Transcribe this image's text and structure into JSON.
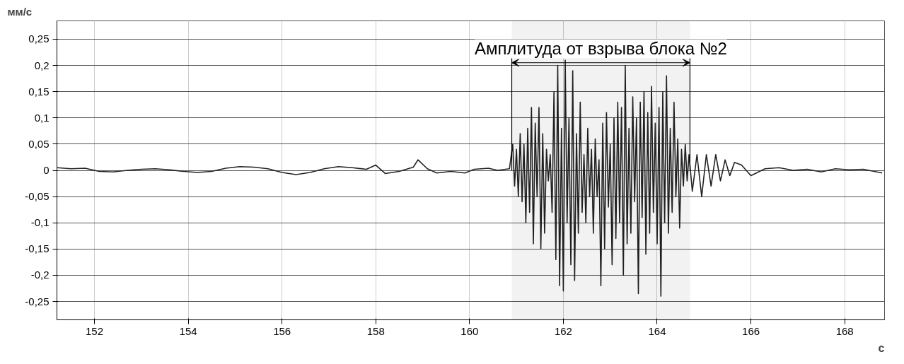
{
  "chart_data": {
    "type": "line",
    "ylabel": "мм/с",
    "xlabel": "с",
    "xlim": [
      151.2,
      168.85
    ],
    "xticks": [
      152,
      154,
      156,
      158,
      160,
      162,
      164,
      166,
      168
    ],
    "ylim": [
      -0.285,
      0.285
    ],
    "yticks": [
      {
        "value": -0.25,
        "label": "-0,25"
      },
      {
        "value": -0.2,
        "label": "-0,2"
      },
      {
        "value": -0.15,
        "label": "-0,15"
      },
      {
        "value": -0.1,
        "label": "-0,1"
      },
      {
        "value": -0.05,
        "label": "-0,05"
      },
      {
        "value": 0,
        "label": "0"
      },
      {
        "value": 0.05,
        "label": "0,05"
      },
      {
        "value": 0.1,
        "label": "0,1"
      },
      {
        "value": 0.15,
        "label": "0,15"
      },
      {
        "value": 0.2,
        "label": "0,2"
      },
      {
        "value": 0.25,
        "label": "0,25"
      }
    ],
    "grid": true,
    "line_style": "solid",
    "bands": [
      {
        "axis": "x",
        "from": 160.9,
        "to": 164.7,
        "label": "Амплитуда от взрыва блока №2",
        "color": "#000000"
      }
    ],
    "series": [
      {
        "color": "#222222",
        "x": [
          151.2,
          151.5,
          151.8,
          152.1,
          152.4,
          152.7,
          153.0,
          153.3,
          153.6,
          153.9,
          154.2,
          154.5,
          154.8,
          155.1,
          155.4,
          155.7,
          156.0,
          156.3,
          156.6,
          156.9,
          157.2,
          157.5,
          157.8,
          158.0,
          158.2,
          158.5,
          158.8,
          158.9,
          159.1,
          159.3,
          159.6,
          159.9,
          160.1,
          160.4,
          160.6,
          160.85,
          160.92,
          160.96,
          161.0,
          161.04,
          161.08,
          161.12,
          161.16,
          161.2,
          161.24,
          161.28,
          161.32,
          161.36,
          161.4,
          161.44,
          161.48,
          161.52,
          161.56,
          161.6,
          161.64,
          161.68,
          161.72,
          161.76,
          161.8,
          161.84,
          161.88,
          161.92,
          161.96,
          162.0,
          162.04,
          162.08,
          162.12,
          162.16,
          162.2,
          162.24,
          162.28,
          162.32,
          162.36,
          162.4,
          162.44,
          162.48,
          162.52,
          162.56,
          162.6,
          162.64,
          162.68,
          162.72,
          162.76,
          162.8,
          162.84,
          162.88,
          162.92,
          162.96,
          163.0,
          163.04,
          163.08,
          163.12,
          163.16,
          163.2,
          163.24,
          163.28,
          163.32,
          163.36,
          163.4,
          163.44,
          163.48,
          163.52,
          163.56,
          163.6,
          163.64,
          163.68,
          163.72,
          163.76,
          163.8,
          163.84,
          163.88,
          163.92,
          163.96,
          164.0,
          164.04,
          164.08,
          164.12,
          164.16,
          164.2,
          164.24,
          164.28,
          164.32,
          164.36,
          164.4,
          164.44,
          164.48,
          164.52,
          164.56,
          164.6,
          164.64,
          164.68,
          164.75,
          164.85,
          164.95,
          165.05,
          165.15,
          165.25,
          165.35,
          165.45,
          165.55,
          165.65,
          165.8,
          166.0,
          166.3,
          166.6,
          166.9,
          167.2,
          167.5,
          167.8,
          168.1,
          168.4,
          168.8
        ],
        "values": [
          0.005,
          0.003,
          0.004,
          -0.002,
          -0.003,
          0.0,
          0.002,
          0.003,
          0.001,
          -0.002,
          -0.004,
          -0.002,
          0.004,
          0.007,
          0.006,
          0.003,
          -0.004,
          -0.008,
          -0.004,
          0.003,
          0.007,
          0.005,
          0.002,
          0.01,
          -0.006,
          -0.002,
          0.006,
          0.02,
          0.003,
          -0.005,
          -0.002,
          -0.005,
          0.002,
          0.004,
          0.0,
          0.003,
          0.05,
          -0.03,
          0.04,
          -0.05,
          0.07,
          -0.06,
          0.05,
          -0.1,
          0.08,
          -0.08,
          0.12,
          -0.14,
          0.09,
          -0.05,
          0.12,
          -0.15,
          0.07,
          -0.12,
          0.04,
          -0.02,
          0.03,
          -0.08,
          0.15,
          -0.17,
          0.2,
          -0.22,
          0.08,
          -0.23,
          0.21,
          -0.1,
          0.1,
          -0.18,
          0.19,
          -0.21,
          0.07,
          -0.12,
          0.13,
          -0.08,
          0.03,
          -0.1,
          0.08,
          -0.05,
          0.04,
          -0.12,
          0.06,
          -0.05,
          0.02,
          -0.22,
          0.09,
          -0.15,
          0.11,
          -0.07,
          0.05,
          -0.18,
          0.1,
          -0.13,
          0.13,
          -0.1,
          0.12,
          -0.2,
          0.2,
          -0.14,
          0.08,
          -0.12,
          0.14,
          -0.06,
          0.1,
          -0.235,
          0.13,
          -0.09,
          0.15,
          -0.16,
          0.11,
          -0.12,
          0.16,
          -0.08,
          0.09,
          -0.14,
          0.12,
          -0.24,
          0.15,
          -0.1,
          0.18,
          -0.12,
          0.08,
          -0.08,
          0.13,
          -0.05,
          0.06,
          -0.11,
          0.04,
          -0.03,
          0.05,
          -0.02,
          0.03,
          -0.04,
          0.03,
          -0.05,
          0.03,
          -0.03,
          0.03,
          -0.02,
          0.02,
          -0.01,
          0.015,
          0.01,
          -0.01,
          0.003,
          0.005,
          0.0,
          0.002,
          -0.003,
          0.003,
          0.001,
          0.002,
          -0.005
        ]
      }
    ]
  }
}
